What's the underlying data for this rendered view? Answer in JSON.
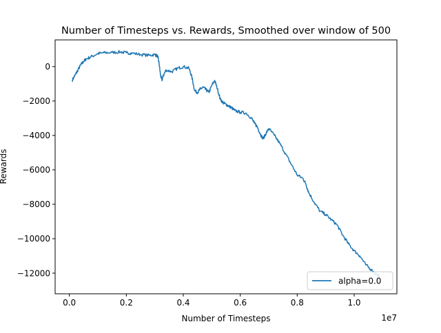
{
  "colors": {
    "series": "#1f77b4",
    "axis": "#000000",
    "legend_border": "#cccccc"
  },
  "chart_data": {
    "type": "line",
    "title": "Number of Timesteps vs. Rewards, Smoothed over window of 500",
    "xlabel": "Number of Timesteps",
    "ylabel": "Rewards",
    "x_offset_label": "1e7",
    "xlim": [
      -0.05,
      1.15
    ],
    "ylim": [
      -13200,
      1550
    ],
    "x_ticks": [
      0.0,
      0.2,
      0.4,
      0.6,
      0.8,
      1.0
    ],
    "x_tick_labels": [
      "0.0",
      "0.2",
      "0.4",
      "0.6",
      "0.8",
      "1.0"
    ],
    "y_ticks": [
      0,
      -2000,
      -4000,
      -6000,
      -8000,
      -10000,
      -12000
    ],
    "y_tick_labels": [
      "0",
      "−2000",
      "−4000",
      "−6000",
      "−8000",
      "−10000",
      "−12000"
    ],
    "grid": false,
    "legend_position": "lower-right",
    "series": [
      {
        "name": "alpha=0.0",
        "x": [
          0.01,
          0.02,
          0.03,
          0.04,
          0.05,
          0.06,
          0.08,
          0.1,
          0.12,
          0.15,
          0.18,
          0.2,
          0.22,
          0.25,
          0.28,
          0.3,
          0.31,
          0.315,
          0.32,
          0.325,
          0.33,
          0.34,
          0.36,
          0.38,
          0.4,
          0.42,
          0.43,
          0.44,
          0.45,
          0.46,
          0.47,
          0.48,
          0.49,
          0.5,
          0.51,
          0.52,
          0.53,
          0.54,
          0.55,
          0.56,
          0.57,
          0.58,
          0.6,
          0.62,
          0.64,
          0.65,
          0.66,
          0.67,
          0.68,
          0.69,
          0.7,
          0.72,
          0.74,
          0.76,
          0.78,
          0.8,
          0.82,
          0.83,
          0.84,
          0.86,
          0.88,
          0.9,
          0.92,
          0.94,
          0.96,
          0.98,
          1.0,
          1.02,
          1.04,
          1.06,
          1.08,
          1.09
        ],
        "y": [
          -800,
          -500,
          -200,
          100,
          300,
          450,
          600,
          750,
          800,
          820,
          850,
          800,
          780,
          700,
          650,
          700,
          600,
          200,
          -500,
          -800,
          -500,
          -200,
          -300,
          -100,
          0,
          -100,
          -600,
          -1400,
          -1500,
          -1300,
          -1200,
          -1350,
          -1500,
          -1100,
          -800,
          -1300,
          -1900,
          -2100,
          -2200,
          -2300,
          -2400,
          -2550,
          -2650,
          -2700,
          -3000,
          -3300,
          -3500,
          -3900,
          -4200,
          -3900,
          -3600,
          -4000,
          -4500,
          -5100,
          -5700,
          -6300,
          -6500,
          -6800,
          -7300,
          -7900,
          -8400,
          -8600,
          -8900,
          -9200,
          -9800,
          -10300,
          -10700,
          -11000,
          -11500,
          -11800,
          -12100,
          -12200
        ]
      }
    ]
  }
}
